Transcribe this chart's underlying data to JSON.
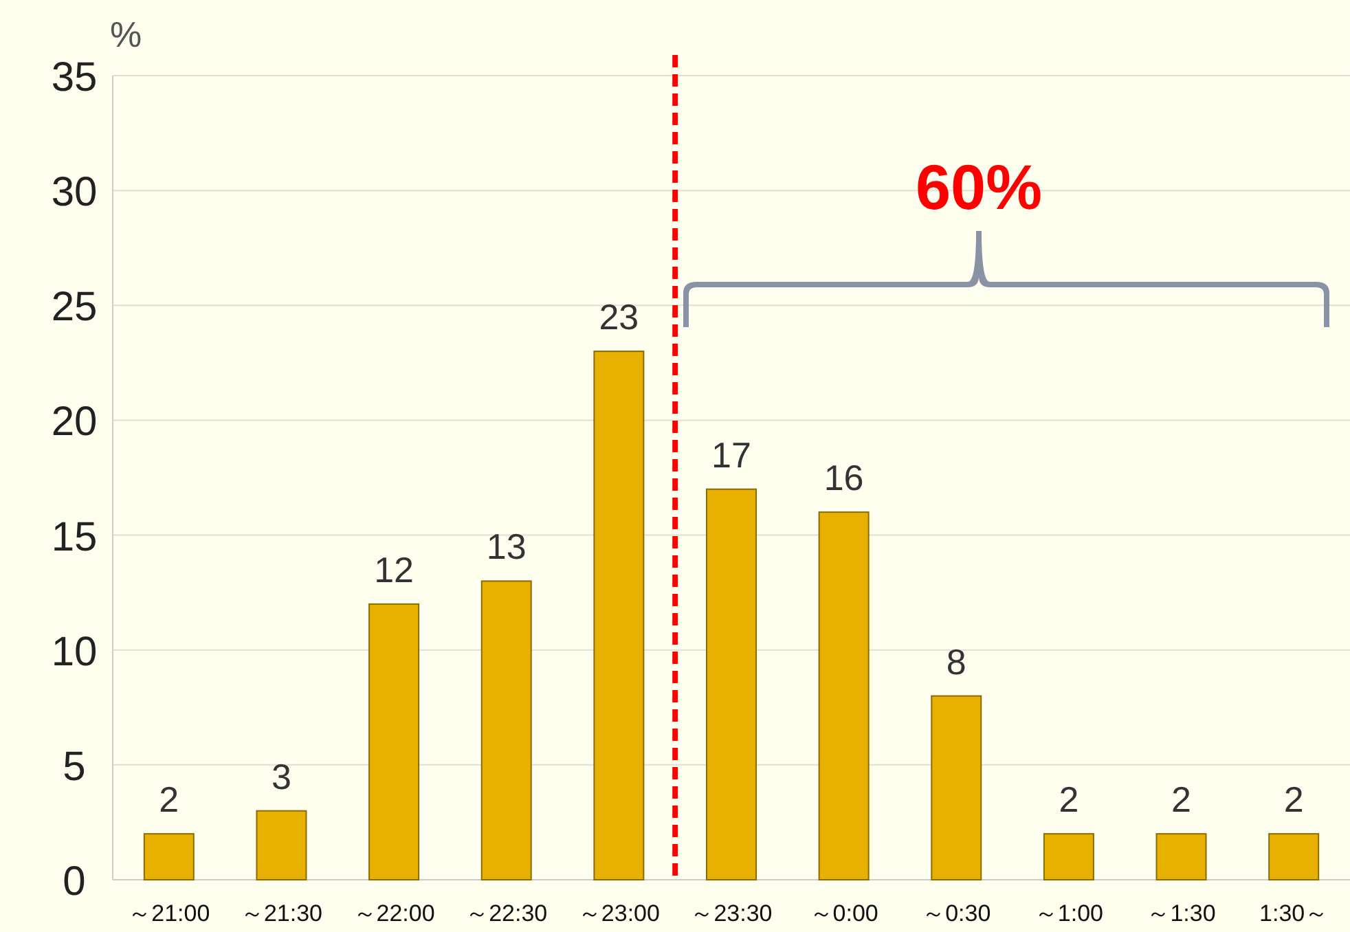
{
  "chart_data": {
    "type": "bar",
    "ylabel": "%",
    "categories": [
      "～21:00",
      "～21:30",
      "～22:00",
      "～22:30",
      "～23:00",
      "～23:30",
      "～0:00",
      "～0:30",
      "～1:00",
      "～1:30",
      "1:30～"
    ],
    "values": [
      2,
      3,
      12,
      13,
      23,
      17,
      16,
      8,
      2,
      2,
      2
    ],
    "color": "#e8b000",
    "ylim": [
      0,
      35
    ],
    "yticks": [
      0,
      5,
      10,
      15,
      20,
      25,
      30,
      35
    ],
    "grid": "y",
    "data_labels": true,
    "annotations": [
      "60%"
    ]
  }
}
